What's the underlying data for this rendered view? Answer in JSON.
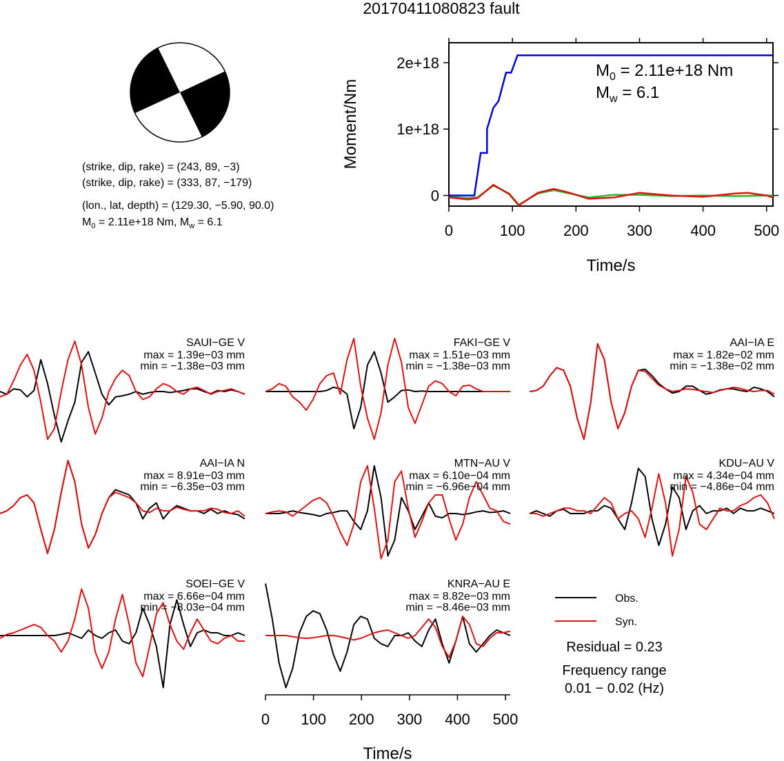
{
  "title": "20170411080823 fault",
  "colors": {
    "obs": "#000000",
    "syn": "#dd1111",
    "moment": "#0000dd",
    "moment_alt": "#22bb22",
    "beachball": "#000000"
  },
  "info": {
    "plane1": "(strike, dip, rake) = (243, 89, −3)",
    "plane2": "(strike, dip, rake) = (333, 87, −179)",
    "location": "(lon., lat, depth) = (129.30, −5.90, 90.0)",
    "moment_prefix": "M",
    "moment_sub": "0",
    "moment_mid": " = 2.11e+18 Nm, M",
    "mw_sub": "w",
    "mw_suffix": " = 6.1"
  },
  "chart_data": [
    {
      "type": "line",
      "name": "moment-rate",
      "xlabel": "Time/s",
      "ylabel": "Moment/Nm",
      "xlim": [
        0,
        510
      ],
      "ylim": [
        -1.6e+17,
        2.3e+18
      ],
      "xticks": [
        0,
        100,
        200,
        300,
        400,
        500
      ],
      "yticks": [
        0,
        1e+18,
        2e+18
      ],
      "ytick_labels": [
        "0",
        "1e+18",
        "2e+18"
      ],
      "annotation_m0": {
        "prefix": "M",
        "sub": "0",
        "suffix": " = 2.11e+18 Nm"
      },
      "annotation_mw": {
        "prefix": "M",
        "sub": "w",
        "suffix": " = 6.1"
      },
      "series": [
        {
          "color": "#0000dd",
          "x": [
            0,
            40,
            50,
            50,
            60,
            60,
            70,
            78,
            90,
            98,
            108,
            510
          ],
          "y": [
            0,
            0,
            6.4e+17,
            6.4e+17,
            6.4e+17,
            1e+18,
            1.32e+18,
            1.42e+18,
            1.85e+18,
            1.85e+18,
            2.11e+18,
            2.11e+18
          ]
        },
        {
          "color": "#22bb22",
          "x": [
            0,
            30,
            45,
            70,
            95,
            110,
            140,
            165,
            190,
            220,
            260,
            300,
            350,
            400,
            450,
            500,
            510
          ],
          "y": [
            -2e+16,
            -4e+16,
            -3e+16,
            1.5e+17,
            3e+16,
            -1.4e+17,
            3e+16,
            8e+16,
            3e+16,
            -3e+16,
            1e+16,
            1e+16,
            -1e+16,
            0,
            -1e+16,
            0,
            0
          ]
        },
        {
          "color": "#dd1111",
          "x": [
            0,
            30,
            45,
            70,
            95,
            110,
            140,
            165,
            190,
            220,
            260,
            300,
            350,
            400,
            450,
            470,
            500,
            510
          ],
          "y": [
            -3e+16,
            -6e+16,
            -4e+16,
            1.6e+17,
            2e+16,
            -1.5e+17,
            4e+16,
            1e+17,
            4e+16,
            -5e+16,
            -3e+16,
            4e+16,
            0,
            -2e+16,
            3e+16,
            4e+16,
            0,
            -3e+16
          ]
        }
      ]
    },
    {
      "type": "line",
      "name": "waveforms",
      "xlabel": "Time/s",
      "xlim": [
        0,
        510
      ],
      "xticks": [
        0,
        100,
        200,
        300,
        400,
        500
      ],
      "legend": [
        "Obs.",
        "Syn."
      ],
      "residual": "Residual = 0.23",
      "frequency_title": "Frequency range",
      "frequency_value": "0.01 − 0.02 (Hz)",
      "stations": [
        {
          "name": "SAUI−GE V",
          "max": "max = 1.39e−03 mm",
          "min": "min = −1.38e−03 mm",
          "obs": [
            0,
            -0.05,
            0.05,
            0.03,
            -0.1,
            0.02,
            0.6,
            0.15,
            -0.45,
            -0.95,
            -0.55,
            -0.2,
            0.55,
            0.75,
            0.35,
            -0.05,
            -0.25,
            -0.1,
            -0.08,
            -0.05,
            0,
            -0.05,
            -0.02,
            0,
            0,
            -0.02,
            0,
            0.02,
            0.05,
            0.05,
            0,
            -0.04,
            0.02,
            0,
            0.03,
            0,
            -0.05
          ],
          "syn": [
            -0.1,
            -0.05,
            0.2,
            0.5,
            0.7,
            0.4,
            -0.2,
            -0.9,
            -0.7,
            0,
            0.6,
            0.95,
            0.5,
            -0.3,
            -0.8,
            -0.5,
            0,
            0.25,
            0.4,
            0.3,
            0,
            -0.15,
            -0.1,
            0.05,
            0.15,
            0.1,
            0,
            -0.05,
            0.05,
            0.08,
            0.02,
            -0.05,
            0,
            0.02,
            0.05,
            0,
            -0.05
          ]
        },
        {
          "name": "FAKI−GE V",
          "max": "max = 1.51e−03 mm",
          "min": "min = −1.38e−03 mm",
          "obs": [
            0,
            0,
            0,
            0,
            0,
            0,
            0,
            0,
            0,
            0.02,
            0.08,
            0.05,
            -0.05,
            -0.7,
            -0.3,
            0.5,
            0.75,
            0.35,
            -0.2,
            -0.1,
            0.02,
            0.03,
            0,
            0.01,
            0,
            0,
            0,
            0,
            0,
            0,
            0,
            0,
            0,
            0,
            0,
            0,
            0
          ],
          "syn": [
            0,
            0.05,
            0.15,
            0.1,
            -0.1,
            -0.2,
            -0.35,
            -0.15,
            0.15,
            0.3,
            0.35,
            -0.05,
            0.6,
            1.0,
            0.1,
            -0.5,
            -0.9,
            -0.4,
            0.5,
            1.0,
            0.55,
            -0.3,
            -0.6,
            -0.25,
            0.1,
            0.2,
            0.15,
            0,
            -0.08,
            0.1,
            0.12,
            0.05,
            0,
            0,
            0,
            0,
            0
          ]
        },
        {
          "name": "AAI−IA E",
          "max": "max = 1.82e−02 mm",
          "min": "min = −1.38e−02 mm",
          "obs": [
            0,
            0.02,
            0.1,
            0.3,
            0.45,
            0.4,
            0.1,
            -0.5,
            -0.9,
            -0.2,
            0.9,
            0.6,
            -0.2,
            -0.7,
            -0.4,
            0.1,
            0.4,
            0.42,
            0.3,
            0.15,
            0.05,
            -0.03,
            0,
            0.1,
            0.1,
            0.02,
            -0.05,
            -0.02,
            0.03,
            0.05,
            0.05,
            0.02,
            0,
            0.08,
            0.05,
            0,
            -0.1
          ],
          "syn": [
            0,
            0.02,
            0.1,
            0.3,
            0.45,
            0.4,
            0.1,
            -0.5,
            -0.9,
            -0.2,
            0.9,
            0.6,
            -0.2,
            -0.7,
            -0.4,
            0.1,
            0.4,
            0.38,
            0.25,
            0.12,
            0.05,
            0,
            0.02,
            0.05,
            0.04,
            0.02,
            0,
            -0.02,
            0.02,
            0.05,
            0.08,
            0.06,
            0.02,
            0,
            0.02,
            0.02,
            -0.05
          ]
        },
        {
          "name": "AAI−IA N",
          "max": "max = 8.91e−03 mm",
          "min": "min = −6.35e−03 mm",
          "obs": [
            0,
            0.05,
            0.15,
            0.3,
            0.35,
            0.2,
            -0.3,
            -0.75,
            -0.3,
            0.4,
            1.0,
            0.6,
            -0.2,
            -0.65,
            -0.4,
            0,
            0.3,
            0.45,
            0.4,
            0.35,
            0.2,
            -0.1,
            0.1,
            0.2,
            -0.1,
            0.05,
            0.15,
            0.1,
            0.05,
            0.05,
            0,
            0.08,
            0,
            0.05,
            0,
            -0.02,
            -0.1
          ],
          "syn": [
            0,
            0.05,
            0.15,
            0.3,
            0.35,
            0.2,
            -0.3,
            -0.75,
            -0.3,
            0.4,
            1.0,
            0.6,
            -0.2,
            -0.65,
            -0.4,
            0,
            0.3,
            0.4,
            0.35,
            0.3,
            0.2,
            0.05,
            0.02,
            0.1,
            0.05,
            0.05,
            0.12,
            0.08,
            0.05,
            0.05,
            0.05,
            0.1,
            0.08,
            0.02,
            0,
            0.05,
            -0.05
          ]
        },
        {
          "name": "MTN−AU V",
          "max": "max = 6.10e−04 mm",
          "min": "min = −6.96e−04 mm",
          "obs": [
            0,
            0,
            0,
            0.02,
            0.05,
            0.02,
            0,
            -0.02,
            -0.05,
            0,
            0.02,
            0.05,
            0.05,
            -0.15,
            -0.3,
            0.05,
            0.9,
            0.3,
            -0.8,
            -0.5,
            0.3,
            0.05,
            -0.3,
            -0.05,
            0.2,
            -0.05,
            -0.08,
            0,
            0,
            -0.02,
            0,
            0.03,
            0.05,
            0.02,
            0.03,
            0.05,
            0
          ],
          "syn": [
            0,
            0.03,
            0.05,
            0.03,
            -0.05,
            0.05,
            0.15,
            0.25,
            0.3,
            0.2,
            -0.05,
            -0.35,
            -0.6,
            -0.2,
            0.6,
            0.9,
            0.1,
            -0.85,
            -0.5,
            0.6,
            0.8,
            0.1,
            -0.45,
            -0.15,
            0.2,
            0.35,
            0.35,
            -0.1,
            -0.5,
            -0.2,
            0.3,
            0.6,
            0.35,
            0.1,
            0.05,
            -0.15,
            -0.2
          ]
        },
        {
          "name": "KDU−AU V",
          "max": "max = 4.34e−04 mm",
          "min": "min = −4.86e−04 mm",
          "obs": [
            0,
            0.05,
            0,
            -0.05,
            0.05,
            0.08,
            0,
            0,
            0,
            0.05,
            0.05,
            0.15,
            0.1,
            -0.1,
            -0.3,
            0.2,
            0.85,
            0.7,
            -0.1,
            -0.6,
            -0.2,
            0.5,
            0.3,
            -0.3,
            0.05,
            0.15,
            0,
            0.05,
            0.05,
            0.1,
            0,
            0.1,
            0.05,
            0.05,
            0.1,
            0.05,
            0
          ],
          "syn": [
            0,
            0,
            -0.05,
            0,
            0.05,
            0.1,
            0.1,
            0.05,
            0.05,
            0,
            0.15,
            0.3,
            0.2,
            -0.1,
            0,
            0.05,
            -0.1,
            -0.45,
            0.1,
            0.75,
            0.2,
            -0.8,
            -0.3,
            0.7,
            0.4,
            -0.2,
            -0.3,
            -0.1,
            0.1,
            0.05,
            0.05,
            0.15,
            0.2,
            0.3,
            0.35,
            0.2,
            -0.1
          ]
        },
        {
          "name": "SOEI−GE V",
          "max": "max = 6.66e−04 mm",
          "min": "min = −8.03e−04 mm",
          "obs": [
            0,
            0,
            0,
            0,
            0,
            0,
            0,
            0,
            0,
            0.02,
            0.05,
            0,
            -0.05,
            0.1,
            0,
            -0.05,
            0.05,
            0.1,
            -0.1,
            -0.15,
            0.05,
            0.5,
            0.2,
            -0.2,
            -0.95,
            0.2,
            0.65,
            0.2,
            -0.2,
            0.05,
            0.1,
            0.05,
            0.05,
            0,
            0,
            0.05,
            0
          ],
          "syn": [
            -0.05,
            0.02,
            0.05,
            0.1,
            0.15,
            0.2,
            0.15,
            0,
            -0.1,
            -0.3,
            -0.1,
            0.3,
            0.85,
            0.5,
            -0.3,
            -0.6,
            -0.3,
            0.3,
            0.75,
            0.2,
            -0.5,
            -0.75,
            -0.2,
            0.4,
            0.6,
            0.2,
            -0.1,
            -0.25,
            0.05,
            0.3,
            0.1,
            -0.1,
            -0.15,
            -0.05,
            0,
            -0.1,
            -0.1
          ]
        },
        {
          "name": "KNRA−AU E",
          "max": "max = 8.82e−03 mm",
          "min": "min = −8.46e−03 mm",
          "obs": [
            0.95,
            0.3,
            -0.5,
            -0.95,
            -0.6,
            0.05,
            0.35,
            0.45,
            0.4,
            0.1,
            -0.35,
            -0.65,
            -0.3,
            0.2,
            0.35,
            0.3,
            -0.05,
            -0.15,
            -0.2,
            0,
            0,
            0.05,
            -0.1,
            -0.2,
            0.1,
            0.3,
            -0.15,
            -0.5,
            -0.1,
            0.35,
            -0.15,
            -0.3,
            -0.15,
            0,
            0.1,
            0.05,
            0
          ],
          "syn": [
            0,
            0,
            0,
            0,
            -0.02,
            -0.04,
            -0.05,
            -0.04,
            -0.02,
            0,
            0,
            -0.02,
            -0.05,
            -0.08,
            -0.05,
            0,
            0.05,
            0.08,
            0.1,
            0.05,
            0,
            -0.05,
            0,
            0.15,
            0.3,
            0.15,
            -0.2,
            -0.4,
            -0.1,
            0.35,
            0.2,
            -0.15,
            -0.2,
            -0.05,
            0.05,
            0.05,
            0.08
          ]
        }
      ]
    }
  ]
}
